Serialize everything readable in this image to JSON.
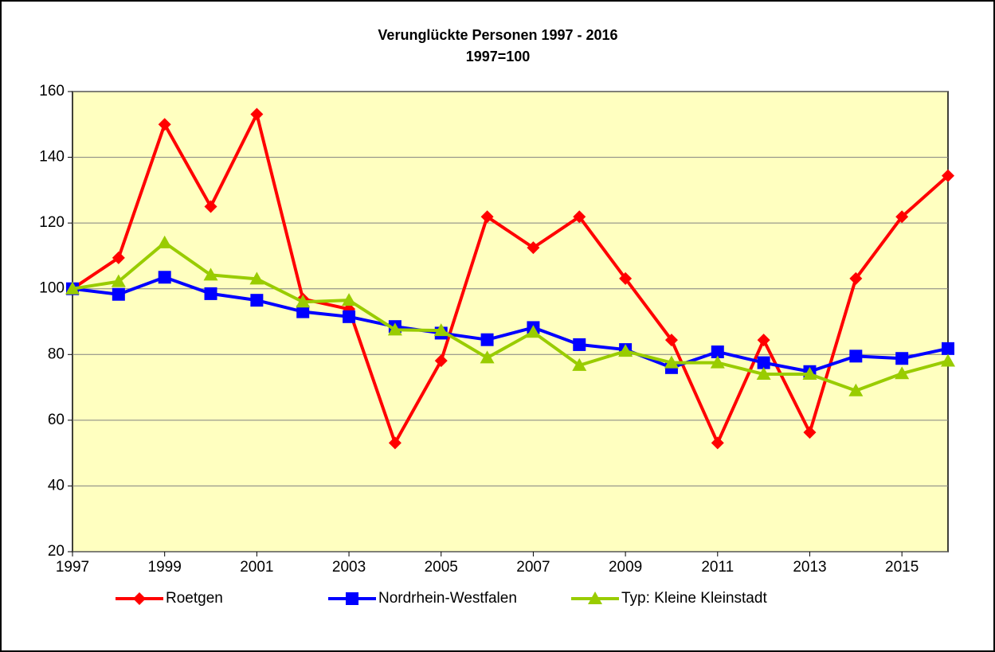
{
  "chart_data": {
    "type": "line",
    "title": "Verunglückte Personen 1997 - 2016",
    "subtitle": "1997=100",
    "x": [
      1997,
      1998,
      1999,
      2000,
      2001,
      2002,
      2003,
      2004,
      2005,
      2006,
      2007,
      2008,
      2009,
      2010,
      2011,
      2012,
      2013,
      2014,
      2015,
      2016
    ],
    "series": [
      {
        "name": "Roetgen",
        "color": "#ff0000",
        "marker": "diamond",
        "values": [
          100,
          109.4,
          150,
          125,
          153.1,
          96.9,
          93.8,
          53.1,
          78.1,
          121.9,
          112.5,
          121.9,
          103.1,
          84.4,
          53.1,
          84.4,
          56.3,
          103.1,
          121.9,
          134.4
        ]
      },
      {
        "name": "Nordrhein-Westfalen",
        "color": "#0000ff",
        "marker": "square",
        "values": [
          100,
          98.3,
          103.5,
          98.5,
          96.5,
          93,
          91.5,
          88.5,
          86.5,
          84.5,
          88.2,
          83,
          81.5,
          76,
          80.8,
          77.5,
          74.8,
          79.5,
          78.8,
          81.8
        ]
      },
      {
        "name": "Typ: Kleine Kleinstadt",
        "color": "#99cc00",
        "marker": "triangle",
        "values": [
          100,
          102.2,
          114,
          104.2,
          103,
          96,
          96.5,
          87.5,
          87.3,
          79,
          86.8,
          76.7,
          81,
          77.5,
          77.5,
          74,
          74,
          69,
          74.2,
          78
        ]
      }
    ],
    "xlim": [
      1997,
      2016
    ],
    "xticks": [
      1997,
      1999,
      2001,
      2003,
      2005,
      2007,
      2009,
      2011,
      2013,
      2015
    ],
    "ylim": [
      20,
      160
    ],
    "yticks": [
      20,
      40,
      60,
      80,
      100,
      120,
      140,
      160
    ],
    "grid": true,
    "legend": "bottom",
    "plot_background": "#ffffc0"
  }
}
